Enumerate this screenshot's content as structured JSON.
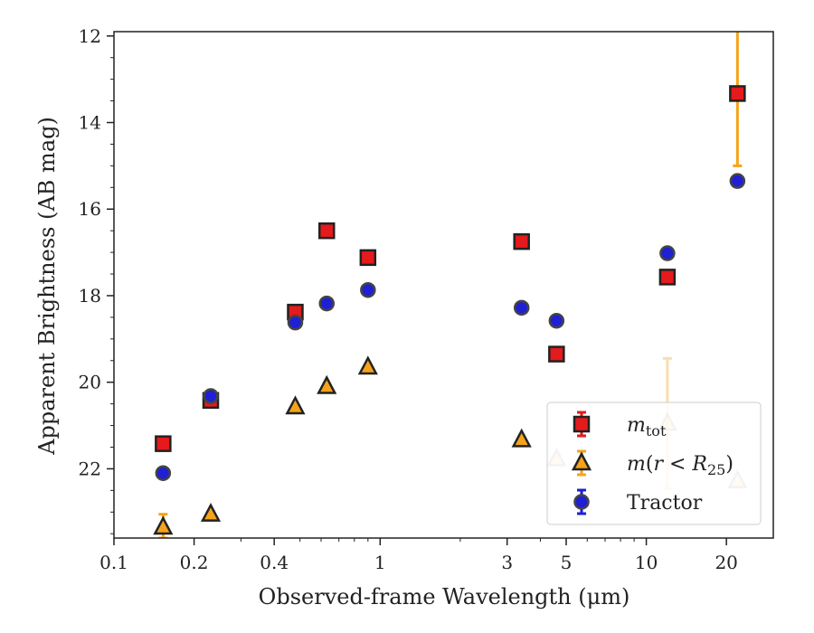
{
  "chart_data": {
    "type": "scatter",
    "title": "",
    "xlabel": "Observed-frame Wavelength (μm)",
    "ylabel": "Apparent Brightness (AB mag)",
    "xscale": "log",
    "xlim": [
      0.1,
      30
    ],
    "ylim": [
      23.6,
      11.9
    ],
    "y_inverted": true,
    "xticks": [
      0.1,
      0.2,
      0.4,
      1,
      3,
      5,
      10,
      20
    ],
    "xtick_labels": [
      "0.1",
      "0.2",
      "0.4",
      "1",
      "3",
      "5",
      "10",
      "20"
    ],
    "yticks": [
      12,
      14,
      16,
      18,
      20,
      22
    ],
    "ytick_labels": [
      "12",
      "14",
      "16",
      "18",
      "20",
      "22"
    ],
    "grid": false,
    "legend_position": "bottom-right",
    "series": [
      {
        "name": "m_tot",
        "marker": "square",
        "color": "#e41a1c",
        "edgecolor": "#222222",
        "errcolor": "#e41a1c",
        "points": [
          {
            "x": 0.153,
            "y": 21.42
          },
          {
            "x": 0.231,
            "y": 20.42
          },
          {
            "x": 0.48,
            "y": 18.38
          },
          {
            "x": 0.63,
            "y": 16.5
          },
          {
            "x": 0.9,
            "y": 17.12
          },
          {
            "x": 3.4,
            "y": 16.75
          },
          {
            "x": 4.6,
            "y": 19.35
          },
          {
            "x": 12.0,
            "y": 17.57
          },
          {
            "x": 22.0,
            "y": 13.33,
            "yerr_lo": 15.0,
            "yerr_hi": 11.0,
            "errcolor": "#f5a31a"
          }
        ]
      },
      {
        "name": "m(r<R25)",
        "marker": "triangle",
        "color": "#f5a31a",
        "edgecolor": "#222222",
        "errcolor": "#f5a31a",
        "points": [
          {
            "x": 0.153,
            "y": 23.35,
            "yerr_lo": 23.6,
            "yerr_hi": 23.05
          },
          {
            "x": 0.231,
            "y": 23.05
          },
          {
            "x": 0.48,
            "y": 20.57
          },
          {
            "x": 0.63,
            "y": 20.1
          },
          {
            "x": 0.9,
            "y": 19.65
          },
          {
            "x": 3.4,
            "y": 21.33
          },
          {
            "x": 4.6,
            "y": 21.77,
            "faded": true
          },
          {
            "x": 12.0,
            "y": 20.95,
            "faded": true,
            "yerr_lo": 22.45,
            "yerr_hi": 19.45
          },
          {
            "x": 22.0,
            "y": 22.28,
            "faded": true
          }
        ]
      },
      {
        "name": "Tractor",
        "marker": "circle",
        "color": "#1f1fd6",
        "edgecolor": "#444444",
        "errcolor": "#1f1fd6",
        "points": [
          {
            "x": 0.153,
            "y": 22.1
          },
          {
            "x": 0.231,
            "y": 20.32
          },
          {
            "x": 0.48,
            "y": 18.62
          },
          {
            "x": 0.63,
            "y": 18.18
          },
          {
            "x": 0.9,
            "y": 17.87
          },
          {
            "x": 3.4,
            "y": 18.28
          },
          {
            "x": 4.6,
            "y": 18.58
          },
          {
            "x": 12.0,
            "y": 17.02
          },
          {
            "x": 22.0,
            "y": 15.35
          }
        ]
      }
    ]
  }
}
